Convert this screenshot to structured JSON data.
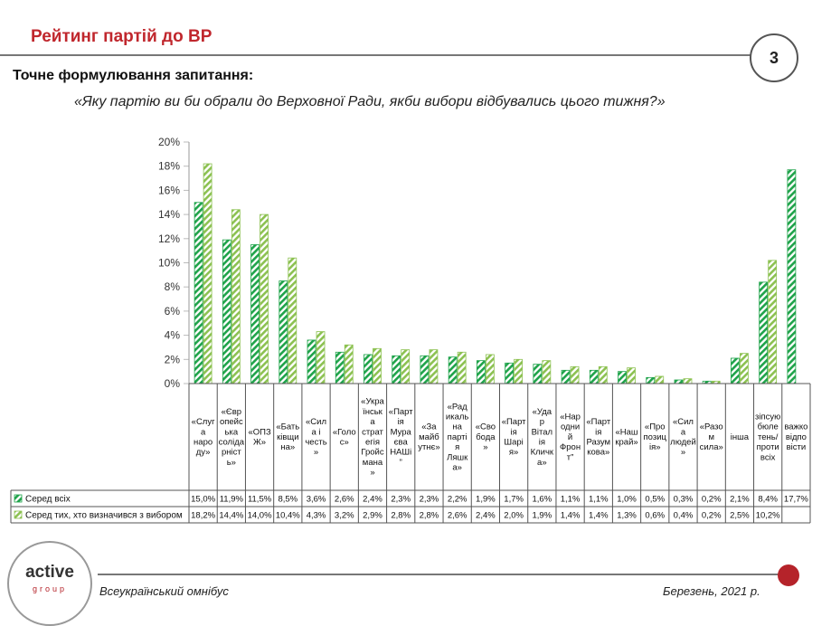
{
  "header": {
    "title": "Рейтинг партій до ВР",
    "page_number": "3"
  },
  "question": {
    "label": "Точне формулювання запитання:",
    "text": "«Яку партію ви би обрали до Верховної Ради, якби вибори відбувались цього тижня?»"
  },
  "footer": {
    "left": "Всеукраїнський омнібус",
    "right": "Березень, 2021 р."
  },
  "logo": {
    "main": "active",
    "sub": "group"
  },
  "colors": {
    "series1": "#1fa34a",
    "series2": "#8cc151",
    "accent": "#c0272d"
  },
  "chart_data": {
    "type": "bar",
    "title": "",
    "xlabel": "",
    "ylabel": "",
    "ylim": [
      0,
      20
    ],
    "yticks": [
      "0%",
      "2%",
      "4%",
      "6%",
      "8%",
      "10%",
      "12%",
      "14%",
      "16%",
      "18%",
      "20%"
    ],
    "categories": [
      "«Слуга народу»",
      "«Європейська солідарність»",
      "«ОПЗЖ»",
      "«Батьківщина»",
      "«Сила і честь»",
      "«Голос»",
      "«Українська стратегія Гройсмана»",
      "«Партія Мураєва НАШі”",
      "«Замайбутнє»",
      "«Радикальна партія Ляшка»",
      "«Свобода»",
      "«Партія Шарія»",
      "«УДАР Віталія Кличка»",
      "«Народний Фронт”",
      "«Партія Разумкова»",
      "«Наш край»",
      "«Опозиція»",
      "«Сила людей»",
      "«Разом сила»",
      "інша",
      "зіпсую бюлетень/ проти всіх",
      "важко відповісти"
    ],
    "category_lines": [
      [
        "«Слуг",
        "а",
        "наро",
        "ду»"
      ],
      [
        "«Євр",
        "опейс",
        "ька",
        "соліда",
        "рніст",
        "ь»"
      ],
      [
        "«ОПЗ",
        "Ж»"
      ],
      [
        "«Бать",
        "ківщи",
        "на»"
      ],
      [
        "«Сил",
        "а і",
        "честь",
        "»"
      ],
      [
        "«Голо",
        "с»"
      ],
      [
        "«Укра",
        "їнськ",
        "а",
        "страт",
        "егія",
        "Гройс",
        "мана",
        "»"
      ],
      [
        "«Парт",
        "ія",
        "Мура",
        "єва",
        "НАШі",
        "”"
      ],
      [
        "«За",
        "майб",
        "утнє»"
      ],
      [
        "«Рад",
        "икаль",
        "на",
        "парті",
        "я",
        "Ляшк",
        "а»"
      ],
      [
        "«Сво",
        "бода",
        "»"
      ],
      [
        "«Парт",
        "ія",
        "Шарі",
        "я»"
      ],
      [
        "«Уда",
        "р",
        "Вітал",
        "ія",
        "Кличк",
        "а»"
      ],
      [
        "«Нар",
        "одни",
        "й",
        "Фрон",
        "т”"
      ],
      [
        "«Парт",
        "ія",
        "Разум",
        "кова»"
      ],
      [
        "«Наш",
        "край»"
      ],
      [
        "«Про",
        "позиц",
        "ія»"
      ],
      [
        "«Сил",
        "а",
        "людей",
        "»"
      ],
      [
        "«Разо",
        "м",
        "сила»"
      ],
      [
        "інша"
      ],
      [
        "зіпсую",
        "бюле",
        "тень/",
        "проти",
        "всіх"
      ],
      [
        "важко",
        "відпо",
        "вісти"
      ]
    ],
    "series": [
      {
        "name": "Серед всіх",
        "values": [
          15.0,
          11.9,
          11.5,
          8.5,
          3.6,
          2.6,
          2.4,
          2.3,
          2.3,
          2.2,
          1.9,
          1.7,
          1.6,
          1.1,
          1.1,
          1.0,
          0.5,
          0.3,
          0.2,
          2.1,
          8.4,
          17.7
        ],
        "labels": [
          "15,0%",
          "11,9%",
          "11,5%",
          "8,5%",
          "3,6%",
          "2,6%",
          "2,4%",
          "2,3%",
          "2,3%",
          "2,2%",
          "1,9%",
          "1,7%",
          "1,6%",
          "1,1%",
          "1,1%",
          "1,0%",
          "0,5%",
          "0,3%",
          "0,2%",
          "2,1%",
          "8,4%",
          "17,7%"
        ]
      },
      {
        "name": "Серед тих, хто визначився з вибором",
        "values": [
          18.2,
          14.4,
          14.0,
          10.4,
          4.3,
          3.2,
          2.9,
          2.8,
          2.8,
          2.6,
          2.4,
          2.0,
          1.9,
          1.4,
          1.4,
          1.3,
          0.6,
          0.4,
          0.2,
          2.5,
          10.2,
          null
        ],
        "labels": [
          "18,2%",
          "14,4%",
          "14,0%",
          "10,4%",
          "4,3%",
          "3,2%",
          "2,9%",
          "2,8%",
          "2,8%",
          "2,6%",
          "2,4%",
          "2,0%",
          "1,9%",
          "1,4%",
          "1,4%",
          "1,3%",
          "0,6%",
          "0,4%",
          "0,2%",
          "2,5%",
          "10,2%",
          ""
        ]
      }
    ]
  }
}
